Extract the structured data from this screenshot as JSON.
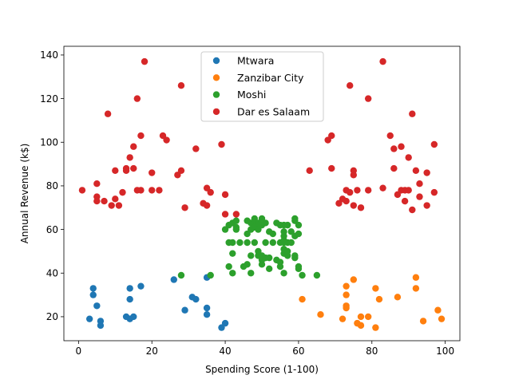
{
  "chart_data": {
    "type": "scatter",
    "title": "",
    "xlabel": "Spending Score (1-100)",
    "ylabel": "Annual Revenue (k$)",
    "xlim": [
      -4,
      104
    ],
    "ylim": [
      9,
      144
    ],
    "xticks": [
      0,
      20,
      40,
      60,
      80,
      100
    ],
    "yticks": [
      20,
      40,
      60,
      80,
      100,
      120,
      140
    ],
    "grid": false,
    "legend_position": "upper-center",
    "series": [
      {
        "name": "Mtwara",
        "color": "#1f77b4",
        "points": [
          [
            3,
            19
          ],
          [
            4,
            33
          ],
          [
            4,
            30
          ],
          [
            5,
            25
          ],
          [
            6,
            18
          ],
          [
            6,
            16
          ],
          [
            13,
            20
          ],
          [
            14,
            33
          ],
          [
            14,
            28
          ],
          [
            14,
            19
          ],
          [
            15,
            20
          ],
          [
            17,
            34
          ],
          [
            26,
            37
          ],
          [
            29,
            23
          ],
          [
            31,
            29
          ],
          [
            32,
            28
          ],
          [
            35,
            38
          ],
          [
            35,
            21
          ],
          [
            35,
            24
          ],
          [
            39,
            15
          ],
          [
            40,
            17
          ]
        ]
      },
      {
        "name": "Zanzibar City",
        "color": "#ff7f0e",
        "points": [
          [
            61,
            28
          ],
          [
            66,
            21
          ],
          [
            72,
            19
          ],
          [
            73,
            34
          ],
          [
            73,
            30
          ],
          [
            73,
            25
          ],
          [
            73,
            24
          ],
          [
            75,
            37
          ],
          [
            76,
            17
          ],
          [
            77,
            16
          ],
          [
            77,
            20
          ],
          [
            79,
            20
          ],
          [
            81,
            33
          ],
          [
            81,
            15
          ],
          [
            82,
            28
          ],
          [
            87,
            29
          ],
          [
            92,
            38
          ],
          [
            92,
            33
          ],
          [
            94,
            18
          ],
          [
            98,
            23
          ],
          [
            99,
            19
          ]
        ]
      },
      {
        "name": "Moshi",
        "color": "#2ca02c",
        "points": [
          [
            28,
            39
          ],
          [
            36,
            39
          ],
          [
            40,
            60
          ],
          [
            41,
            43
          ],
          [
            41,
            54
          ],
          [
            41,
            62
          ],
          [
            42,
            63
          ],
          [
            42,
            49
          ],
          [
            42,
            54
          ],
          [
            42,
            40
          ],
          [
            43,
            61
          ],
          [
            43,
            60
          ],
          [
            43,
            64
          ],
          [
            44,
            54
          ],
          [
            45,
            43
          ],
          [
            46,
            64
          ],
          [
            46,
            44
          ],
          [
            46,
            58
          ],
          [
            46,
            54
          ],
          [
            47,
            40
          ],
          [
            47,
            63
          ],
          [
            47,
            48
          ],
          [
            47,
            60
          ],
          [
            48,
            62
          ],
          [
            48,
            54
          ],
          [
            48,
            64
          ],
          [
            48,
            65
          ],
          [
            48,
            61
          ],
          [
            49,
            48
          ],
          [
            49,
            61
          ],
          [
            49,
            60
          ],
          [
            49,
            63
          ],
          [
            49,
            50
          ],
          [
            50,
            44
          ],
          [
            50,
            62
          ],
          [
            50,
            65
          ],
          [
            50,
            48
          ],
          [
            50,
            46
          ],
          [
            51,
            63
          ],
          [
            51,
            47
          ],
          [
            51,
            54
          ],
          [
            52,
            47
          ],
          [
            52,
            42
          ],
          [
            52,
            59
          ],
          [
            53,
            54
          ],
          [
            53,
            58
          ],
          [
            54,
            63
          ],
          [
            54,
            46
          ],
          [
            55,
            45
          ],
          [
            55,
            54
          ],
          [
            55,
            43
          ],
          [
            55,
            62
          ],
          [
            56,
            40
          ],
          [
            56,
            54
          ],
          [
            56,
            59
          ],
          [
            56,
            57
          ],
          [
            56,
            55
          ],
          [
            56,
            51
          ],
          [
            56,
            49
          ],
          [
            56,
            62
          ],
          [
            57,
            62
          ],
          [
            57,
            48
          ],
          [
            57,
            50
          ],
          [
            57,
            54
          ],
          [
            58,
            54
          ],
          [
            58,
            59
          ],
          [
            59,
            64
          ],
          [
            59,
            47
          ],
          [
            59,
            48
          ],
          [
            59,
            57
          ],
          [
            59,
            65
          ],
          [
            60,
            62
          ],
          [
            60,
            58
          ],
          [
            60,
            43
          ],
          [
            60,
            42
          ],
          [
            61,
            39
          ],
          [
            65,
            39
          ]
        ]
      },
      {
        "name": "Dar es Salaam",
        "color": "#d62728",
        "points": [
          [
            1,
            78
          ],
          [
            5,
            81
          ],
          [
            5,
            75
          ],
          [
            5,
            73
          ],
          [
            7,
            73
          ],
          [
            8,
            113
          ],
          [
            9,
            71
          ],
          [
            10,
            87
          ],
          [
            10,
            74
          ],
          [
            11,
            71
          ],
          [
            12,
            77
          ],
          [
            13,
            88
          ],
          [
            13,
            87
          ],
          [
            14,
            93
          ],
          [
            15,
            88
          ],
          [
            15,
            98
          ],
          [
            16,
            120
          ],
          [
            16,
            78
          ],
          [
            17,
            78
          ],
          [
            17,
            103
          ],
          [
            18,
            137
          ],
          [
            20,
            86
          ],
          [
            20,
            78
          ],
          [
            22,
            78
          ],
          [
            23,
            103
          ],
          [
            24,
            101
          ],
          [
            27,
            85
          ],
          [
            28,
            87
          ],
          [
            28,
            126
          ],
          [
            29,
            70
          ],
          [
            32,
            97
          ],
          [
            34,
            72
          ],
          [
            35,
            79
          ],
          [
            35,
            71
          ],
          [
            36,
            77
          ],
          [
            39,
            99
          ],
          [
            40,
            76
          ],
          [
            40,
            67
          ],
          [
            43,
            67
          ],
          [
            63,
            87
          ],
          [
            68,
            101
          ],
          [
            69,
            88
          ],
          [
            69,
            103
          ],
          [
            71,
            72
          ],
          [
            72,
            74
          ],
          [
            73,
            78
          ],
          [
            73,
            73
          ],
          [
            74,
            126
          ],
          [
            74,
            77
          ],
          [
            75,
            87
          ],
          [
            75,
            85
          ],
          [
            75,
            71
          ],
          [
            76,
            78
          ],
          [
            77,
            70
          ],
          [
            79,
            78
          ],
          [
            79,
            120
          ],
          [
            83,
            137
          ],
          [
            83,
            79
          ],
          [
            85,
            103
          ],
          [
            86,
            97
          ],
          [
            86,
            88
          ],
          [
            87,
            76
          ],
          [
            88,
            98
          ],
          [
            88,
            78
          ],
          [
            89,
            73
          ],
          [
            89,
            78
          ],
          [
            90,
            93
          ],
          [
            90,
            78
          ],
          [
            91,
            113
          ],
          [
            91,
            69
          ],
          [
            92,
            87
          ],
          [
            93,
            81
          ],
          [
            93,
            75
          ],
          [
            95,
            86
          ],
          [
            95,
            71
          ],
          [
            97,
            99
          ],
          [
            97,
            77
          ]
        ]
      }
    ]
  }
}
